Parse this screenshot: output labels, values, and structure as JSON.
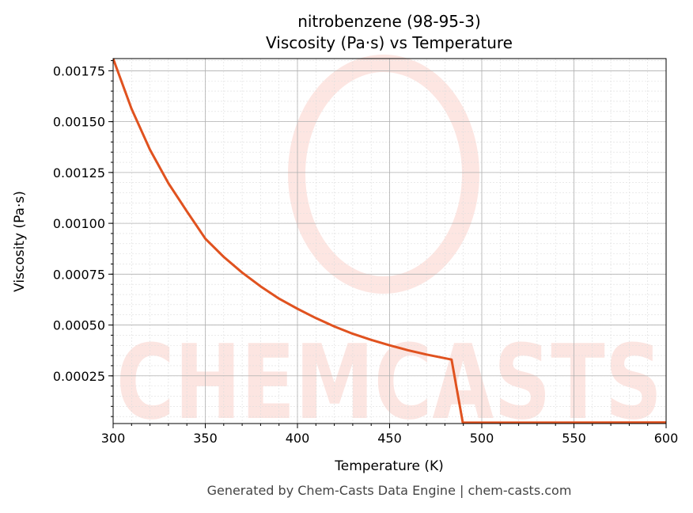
{
  "chart_data": {
    "type": "line",
    "title_line1": "nitrobenzene (98-95-3)",
    "title_line2": "Viscosity (Pa·s) vs Temperature",
    "xlabel": "Temperature (K)",
    "ylabel": "Viscosity (Pa·s)",
    "xlim": [
      300,
      600
    ],
    "ylim": [
      1.56e-05,
      0.00181
    ],
    "xticks": [
      300,
      350,
      400,
      450,
      500,
      550,
      600
    ],
    "xtick_labels": [
      "300",
      "350",
      "400",
      "450",
      "500",
      "550",
      "600"
    ],
    "yticks": [
      0.00025,
      0.0005,
      0.00075,
      0.001,
      0.00125,
      0.0015,
      0.00175
    ],
    "ytick_labels": [
      "0.00025",
      "0.00050",
      "0.00075",
      "0.00100",
      "0.00125",
      "0.00150",
      "0.00175"
    ],
    "grid": true,
    "series": [
      {
        "name": "Viscosity",
        "color": "#e0521f",
        "x": [
          300,
          310,
          320,
          330,
          340,
          350,
          360,
          370,
          380,
          390,
          400,
          410,
          420,
          430,
          440,
          450,
          460,
          470,
          483.6,
          489.7,
          600
        ],
        "y": [
          0.00181,
          0.001563,
          0.001362,
          0.001197,
          0.001059,
          0.000925,
          0.000835,
          0.000758,
          0.00069,
          0.00063,
          0.00058,
          0.000534,
          0.000493,
          0.000457,
          0.000427,
          0.0004,
          0.000376,
          0.000355,
          0.00033,
          2e-05,
          2.1e-05
        ]
      }
    ],
    "watermark": "CHEMCASTS"
  },
  "footer": "Generated by Chem-Casts Data Engine | chem-casts.com"
}
